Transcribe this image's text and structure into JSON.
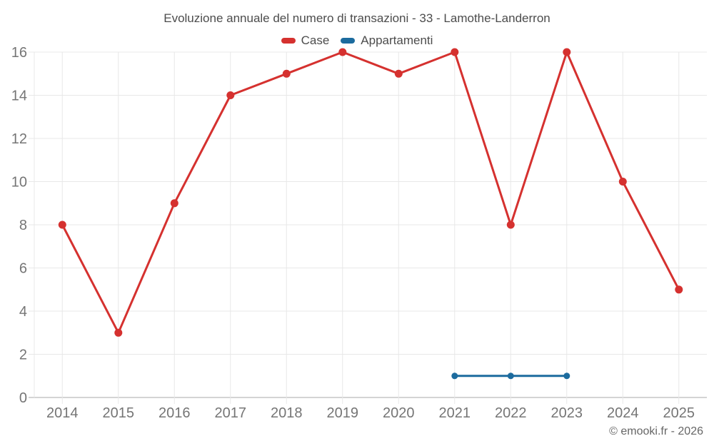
{
  "header": {
    "title": "Evoluzione annuale del numero di transazioni - 33 - Lamothe-Landerron"
  },
  "chart_data": {
    "type": "line",
    "title": "Evoluzione annuale del numero di transazioni - 33 - Lamothe-Landerron",
    "x": [
      "2014",
      "2015",
      "2016",
      "2017",
      "2018",
      "2019",
      "2020",
      "2021",
      "2022",
      "2023",
      "2024",
      "2025"
    ],
    "series": [
      {
        "name": "Case",
        "color": "#d5312f",
        "point_radius": 5.5,
        "values": [
          8,
          3,
          9,
          14,
          15,
          16,
          15,
          16,
          8,
          16,
          10,
          5
        ]
      },
      {
        "name": "Appartamenti",
        "color": "#1c6b9e",
        "point_radius": 4.5,
        "values": [
          null,
          null,
          null,
          null,
          null,
          null,
          null,
          1,
          1,
          1,
          null,
          null
        ]
      }
    ],
    "xlabel": "",
    "ylabel": "",
    "ylim": [
      0,
      16
    ],
    "ytick_step": 2,
    "grid": true,
    "legend_position": "top"
  },
  "footer": {
    "credit": "© emooki.fr - 2026"
  },
  "colors": {
    "accent_red": "#d5312f",
    "accent_blue": "#1c6b9e",
    "title_text": "#4c4c4c",
    "axis_text": "#757575",
    "grid_line": "#e8e8e8",
    "axis_line": "#c6c6c6",
    "footer_text": "#666666",
    "background": "#ffffff"
  }
}
